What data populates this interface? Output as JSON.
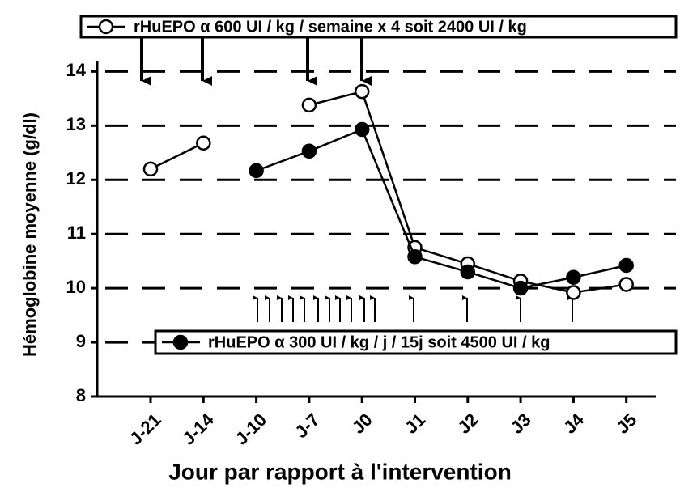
{
  "chart_data": {
    "type": "line",
    "x_label": "Jour par rapport à l'intervention",
    "y_label": "Hémoglobine moyenne (g/dl)",
    "categories": [
      "J-21",
      "J-14",
      "J-10",
      "J-7",
      "J0",
      "J1",
      "J2",
      "J3",
      "J4",
      "J5"
    ],
    "series": [
      {
        "name": "rHuEPO α 600 UI / kg / semaine x 4 soit 2400 UI / kg",
        "color": "#ffffff",
        "values": [
          12.2,
          12.68,
          null,
          13.38,
          13.63,
          10.75,
          10.45,
          10.13,
          9.92,
          10.07
        ]
      },
      {
        "name": "rHuEPO α 300 UI / kg / j / 15j soit 4500 UI / kg",
        "color": "#000000",
        "values": [
          null,
          null,
          12.17,
          12.53,
          12.93,
          10.58,
          10.3,
          10.0,
          10.2,
          10.42
        ]
      }
    ],
    "ylim": [
      8,
      14.2
    ],
    "yticks": [
      8,
      9,
      10,
      11,
      12,
      13,
      14
    ],
    "grid": true
  }
}
